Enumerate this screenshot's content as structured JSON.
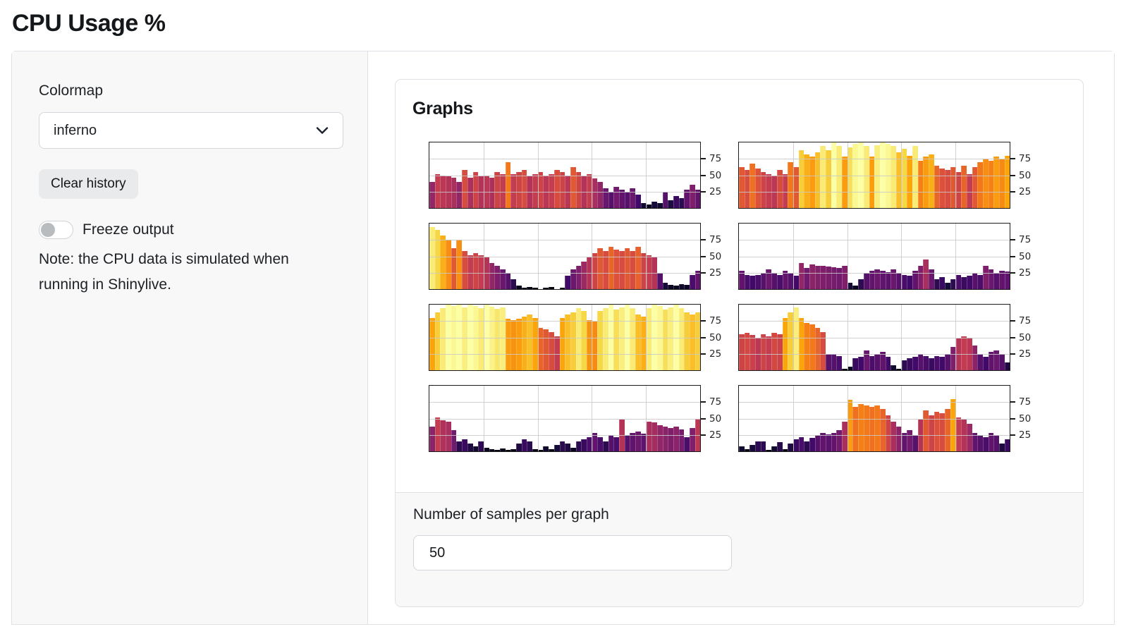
{
  "page": {
    "title": "CPU Usage %"
  },
  "sidebar": {
    "colormap_label": "Colormap",
    "colormap_value": "inferno",
    "clear_button_label": "Clear history",
    "freeze_label": "Freeze output",
    "freeze_state": "off",
    "note": "Note: the CPU data is simulated when running in Shinylive."
  },
  "main": {
    "card_title": "Graphs",
    "samples_label": "Number of samples per graph",
    "samples_value": "50"
  },
  "colors": {
    "border": "#dee2e6",
    "sidebar_bg": "#f8f8f8",
    "button_bg": "#e9eaeb",
    "plot_spine": "#1c1c1c",
    "plot_grid": "#c9c9c9",
    "inferno_stops": [
      "#000004",
      "#160b39",
      "#420a68",
      "#6a176e",
      "#932667",
      "#bc3754",
      "#dd513a",
      "#f37819",
      "#fca50a",
      "#f6d746",
      "#fcffa4"
    ]
  },
  "chart_data": {
    "type": "bar",
    "title": "",
    "xlabel": "",
    "ylabel": "",
    "layout": {
      "rows": 4,
      "cols": 2,
      "ylim": [
        0,
        100
      ],
      "yticks": [
        25,
        50,
        75
      ],
      "ytick_side": "right",
      "grid": true,
      "x_gridlines_pct": [
        20,
        40,
        60,
        80
      ],
      "n_samples_per_graph": 50,
      "colormap": "inferno",
      "color_encodes": "bar value 0-100 mapped through inferno colormap"
    },
    "series": [
      {
        "name": "cpu-graph-1",
        "values": [
          40,
          52,
          50,
          48,
          46,
          40,
          58,
          46,
          55,
          48,
          50,
          46,
          55,
          52,
          70,
          52,
          55,
          58,
          48,
          52,
          55,
          50,
          52,
          58,
          55,
          50,
          62,
          55,
          48,
          52,
          45,
          40,
          30,
          25,
          32,
          28,
          25,
          30,
          20,
          8,
          5,
          10,
          8,
          25,
          12,
          18,
          15,
          28,
          35,
          28
        ]
      },
      {
        "name": "cpu-graph-2",
        "values": [
          62,
          58,
          68,
          60,
          55,
          52,
          50,
          58,
          52,
          70,
          62,
          88,
          82,
          78,
          85,
          95,
          88,
          100,
          95,
          78,
          92,
          98,
          100,
          95,
          78,
          96,
          100,
          98,
          95,
          85,
          90,
          80,
          95,
          72,
          78,
          82,
          65,
          60,
          58,
          62,
          55,
          65,
          52,
          62,
          70,
          75,
          72,
          78,
          74,
          80
        ]
      },
      {
        "name": "cpu-graph-3",
        "values": [
          95,
          90,
          82,
          75,
          62,
          75,
          58,
          52,
          55,
          52,
          48,
          40,
          35,
          30,
          25,
          15,
          5,
          2,
          3,
          2,
          0,
          2,
          3,
          0,
          2,
          20,
          30,
          35,
          42,
          48,
          55,
          62,
          58,
          65,
          60,
          58,
          62,
          58,
          64,
          55,
          52,
          48,
          25,
          10,
          6,
          5,
          8,
          6,
          22,
          28
        ]
      },
      {
        "name": "cpu-graph-4",
        "values": [
          28,
          22,
          20,
          22,
          25,
          30,
          25,
          22,
          28,
          25,
          20,
          40,
          32,
          38,
          36,
          35,
          34,
          33,
          32,
          35,
          10,
          5,
          15,
          25,
          28,
          30,
          28,
          26,
          30,
          25,
          22,
          20,
          28,
          35,
          45,
          30,
          15,
          18,
          10,
          15,
          22,
          18,
          20,
          25,
          22,
          35,
          30,
          25,
          28,
          27
        ]
      },
      {
        "name": "cpu-graph-5",
        "values": [
          80,
          88,
          95,
          100,
          98,
          100,
          96,
          100,
          98,
          95,
          100,
          97,
          94,
          96,
          78,
          76,
          78,
          82,
          85,
          80,
          65,
          62,
          58,
          52,
          80,
          85,
          88,
          95,
          90,
          76,
          74,
          90,
          95,
          100,
          92,
          96,
          100,
          95,
          85,
          82,
          95,
          100,
          98,
          92,
          96,
          100,
          95,
          88,
          85,
          88
        ]
      },
      {
        "name": "cpu-graph-6",
        "values": [
          55,
          57,
          54,
          50,
          55,
          52,
          57,
          55,
          80,
          88,
          96,
          80,
          72,
          70,
          65,
          58,
          25,
          25,
          22,
          2,
          5,
          18,
          20,
          30,
          22,
          25,
          28,
          20,
          8,
          2,
          15,
          18,
          20,
          25,
          22,
          18,
          22,
          20,
          25,
          35,
          48,
          52,
          50,
          38,
          25,
          20,
          28,
          30,
          25,
          12
        ]
      },
      {
        "name": "cpu-graph-7",
        "values": [
          38,
          52,
          47,
          45,
          32,
          15,
          18,
          12,
          8,
          15,
          5,
          3,
          2,
          4,
          2,
          3,
          12,
          18,
          15,
          3,
          2,
          8,
          3,
          10,
          15,
          12,
          5,
          15,
          18,
          22,
          28,
          22,
          15,
          25,
          22,
          48,
          25,
          28,
          30,
          27,
          45,
          44,
          40,
          38,
          35,
          38,
          33,
          22,
          35,
          50
        ]
      },
      {
        "name": "cpu-graph-8",
        "values": [
          8,
          3,
          10,
          15,
          15,
          2,
          8,
          14,
          3,
          12,
          18,
          22,
          15,
          20,
          25,
          28,
          26,
          28,
          32,
          45,
          78,
          68,
          72,
          70,
          68,
          70,
          65,
          55,
          45,
          38,
          28,
          32,
          25,
          48,
          62,
          55,
          60,
          58,
          65,
          80,
          52,
          48,
          42,
          28,
          25,
          22,
          28,
          25,
          12,
          18
        ]
      }
    ]
  }
}
